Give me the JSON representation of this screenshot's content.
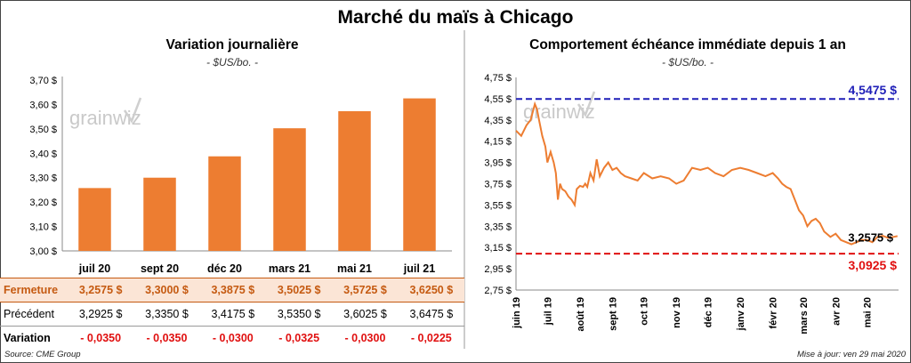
{
  "title": "Marché du maïs à Chicago",
  "source": "Source: CME Group",
  "updated": "Mise à jour: ven 29 mai 2020",
  "logo": "grainwiz",
  "colors": {
    "bar": "#ed7d31",
    "line": "#ed7d31",
    "high": "#1f1fb8",
    "low": "#e01010"
  },
  "chart_data": [
    {
      "type": "bar",
      "title": "Variation journalière",
      "units": "- $US/bo. -",
      "categories": [
        "juil 20",
        "sept 20",
        "déc 20",
        "mars 21",
        "mai 21",
        "juil 21"
      ],
      "values": [
        3.2575,
        3.3,
        3.3875,
        3.5025,
        3.5725,
        3.625
      ],
      "ylim": [
        3.0,
        3.7
      ],
      "yticks": [
        3.0,
        3.1,
        3.2,
        3.3,
        3.4,
        3.5,
        3.6,
        3.7
      ],
      "ytick_labels": [
        "3,00 $",
        "3,10 $",
        "3,20 $",
        "3,30 $",
        "3,40 $",
        "3,50 $",
        "3,60 $",
        "3,70 $"
      ],
      "grid": false
    },
    {
      "type": "line",
      "title": "Comportement  échéance immédiate depuis 1 an",
      "units": "- $US/bo. -",
      "ylim": [
        2.75,
        4.75
      ],
      "yticks": [
        2.75,
        2.95,
        3.15,
        3.35,
        3.55,
        3.75,
        3.95,
        4.15,
        4.35,
        4.55,
        4.75
      ],
      "ytick_labels": [
        "2,75 $",
        "2,95 $",
        "3,15 $",
        "3,35 $",
        "3,55 $",
        "3,75 $",
        "3,95 $",
        "4,15 $",
        "4,35 $",
        "4,55 $",
        "4,75 $"
      ],
      "xlabels": [
        "juin 19",
        "juil 19",
        "août 19",
        "sept 19",
        "oct 19",
        "nov 19",
        "déc 19",
        "janv 20",
        "févr 20",
        "mars 20",
        "avr 20",
        "mai 20"
      ],
      "x_days_total": 365,
      "x_label_days": [
        0,
        30,
        61,
        92,
        122,
        153,
        183,
        214,
        245,
        274,
        305,
        335
      ],
      "x": [
        0,
        5,
        10,
        14,
        18,
        20,
        22,
        25,
        28,
        30,
        33,
        36,
        38,
        40,
        42,
        44,
        47,
        50,
        53,
        56,
        58,
        61,
        64,
        66,
        68,
        71,
        74,
        77,
        80,
        84,
        88,
        92,
        96,
        100,
        104,
        110,
        116,
        122,
        130,
        138,
        146,
        153,
        160,
        168,
        176,
        183,
        190,
        198,
        206,
        214,
        222,
        230,
        238,
        245,
        250,
        254,
        258,
        262,
        266,
        270,
        274,
        278,
        282,
        286,
        290,
        294,
        300,
        305,
        310,
        315,
        320,
        325,
        330,
        335,
        340,
        345,
        350,
        355,
        360,
        364
      ],
      "y": [
        4.25,
        4.2,
        4.3,
        4.35,
        4.5,
        4.45,
        4.35,
        4.2,
        4.1,
        3.95,
        4.05,
        3.95,
        3.85,
        3.6,
        3.75,
        3.7,
        3.68,
        3.63,
        3.6,
        3.55,
        3.7,
        3.73,
        3.72,
        3.75,
        3.72,
        3.85,
        3.78,
        3.98,
        3.82,
        3.9,
        3.95,
        3.88,
        3.9,
        3.85,
        3.82,
        3.8,
        3.78,
        3.85,
        3.8,
        3.82,
        3.8,
        3.75,
        3.78,
        3.9,
        3.88,
        3.9,
        3.85,
        3.82,
        3.88,
        3.9,
        3.88,
        3.85,
        3.82,
        3.85,
        3.8,
        3.75,
        3.72,
        3.7,
        3.6,
        3.5,
        3.45,
        3.35,
        3.4,
        3.42,
        3.38,
        3.3,
        3.25,
        3.28,
        3.22,
        3.2,
        3.18,
        3.2,
        3.22,
        3.22,
        3.2,
        3.25,
        3.26,
        3.24,
        3.25,
        3.2575
      ],
      "high": 4.5475,
      "high_label": "4,5475 $",
      "low": 3.0925,
      "low_label": "3,0925 $",
      "last": 3.2575,
      "last_label": "3,2575 $"
    }
  ],
  "table": {
    "rows": [
      {
        "label": "Fermeture",
        "values": [
          "3,2575  $",
          "3,3000  $",
          "3,3875  $",
          "3,5025  $",
          "3,5725  $",
          "3,6250  $"
        ]
      },
      {
        "label": "Précédent",
        "values": [
          "3,2925  $",
          "3,3350  $",
          "3,4175  $",
          "3,5350  $",
          "3,6025  $",
          "3,6475  $"
        ]
      },
      {
        "label": "Variation",
        "values": [
          "- 0,0350",
          "- 0,0350",
          "- 0,0300",
          "- 0,0325",
          "- 0,0300",
          "- 0,0225"
        ]
      }
    ]
  }
}
